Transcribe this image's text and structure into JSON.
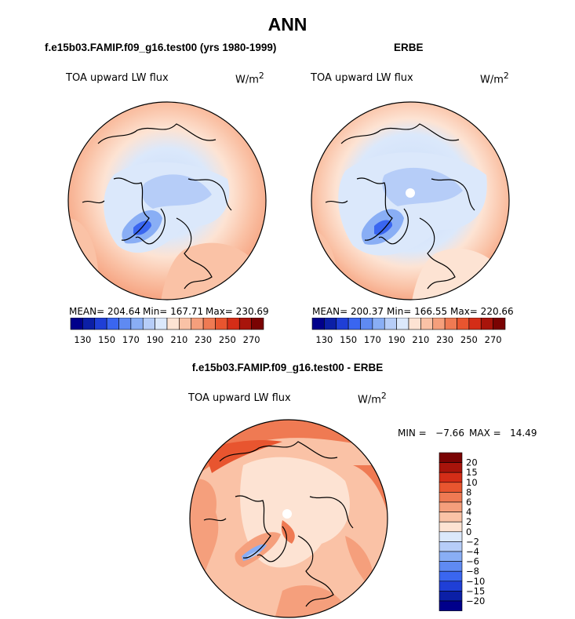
{
  "figure": {
    "title": "ANN"
  },
  "colors": {
    "level_colors": [
      "#00008b",
      "#0b1fa6",
      "#1f3fd6",
      "#3a66f0",
      "#5f8af2",
      "#89aef5",
      "#b6cdf8",
      "#dbe8fb",
      "#fde3d3",
      "#fac2a6",
      "#f59f7c",
      "#ef7a53",
      "#e8552f",
      "#d42d17",
      "#a8140b",
      "#7a0303"
    ],
    "coast": "#000000"
  },
  "chart_data": [
    {
      "type": "heatmap",
      "panel_title": "f.e15b03.FAMIP.f09_g16.test00 (yrs 1980-1999)",
      "variable_label": "TOA upward LW flux",
      "units": "W/m2",
      "stats": {
        "mean": "MEAN= 204.64",
        "min": "Min= 167.71",
        "max": "Max= 230.69"
      },
      "colorbar_ticks": [
        "130",
        "150",
        "170",
        "190",
        "210",
        "230",
        "250",
        "270"
      ],
      "levels": [
        130,
        140,
        150,
        160,
        170,
        180,
        190,
        200,
        210,
        220,
        230,
        240,
        250,
        260,
        270
      ],
      "projection": "north polar stereographic"
    },
    {
      "type": "heatmap",
      "panel_title": "ERBE",
      "variable_label": "TOA upward LW flux",
      "units": "W/m2",
      "stats": {
        "mean": "MEAN= 200.37",
        "min": "Min= 166.55",
        "max": "Max= 220.66"
      },
      "colorbar_ticks": [
        "130",
        "150",
        "170",
        "190",
        "210",
        "230",
        "250",
        "270"
      ],
      "levels": [
        130,
        140,
        150,
        160,
        170,
        180,
        190,
        200,
        210,
        220,
        230,
        240,
        250,
        260,
        270
      ],
      "projection": "north polar stereographic"
    },
    {
      "type": "heatmap",
      "panel_title": "f.e15b03.FAMIP.f09_g16.test00 - ERBE",
      "variable_label": "TOA upward LW flux",
      "units": "W/m2",
      "stats": {
        "min": "MIN =   −7.66",
        "max": "MAX =   14.49"
      },
      "colorbar_ticks": [
        "20",
        "15",
        "10",
        "8",
        "6",
        "4",
        "2",
        "0",
        "−2",
        "−4",
        "−6",
        "−8",
        "−10",
        "−15",
        "−20"
      ],
      "levels": [
        -20,
        -15,
        -10,
        -8,
        -6,
        -4,
        -2,
        0,
        2,
        4,
        6,
        8,
        10,
        15,
        20
      ],
      "projection": "north polar stereographic"
    }
  ]
}
